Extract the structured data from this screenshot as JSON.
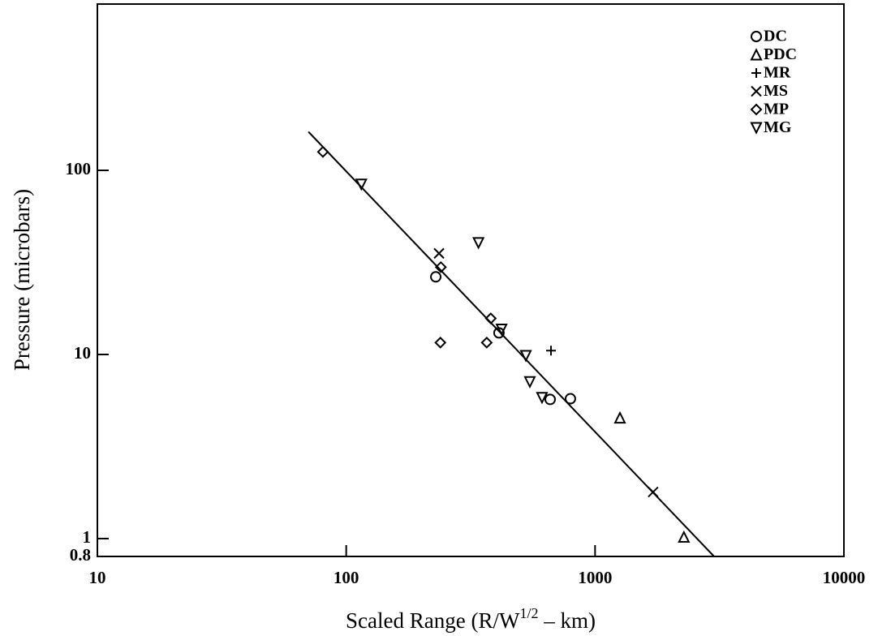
{
  "chart_data": {
    "type": "scatter",
    "ylabel": "Pressure (microbars)",
    "xlabel": {
      "text": "Scaled Range (R/W",
      "sup": "1/2",
      "tail": " – km)"
    },
    "log_x": true,
    "log_y": true,
    "xlim": [
      10,
      10000
    ],
    "ylim": [
      0.8,
      800
    ],
    "xticks": [
      10,
      100,
      1000,
      10000
    ],
    "yticks": [
      0.8,
      1,
      10,
      100
    ],
    "legend": "upper right",
    "color": "#000000",
    "series": [
      {
        "name": "DC",
        "marker": "circle",
        "x": [
          229,
          411,
          660,
          796
        ],
        "values": [
          26.4,
          13.1,
          5.7,
          5.75
        ]
      },
      {
        "name": "PDC",
        "marker": "triangle-up",
        "x": [
          1259,
          2275
        ],
        "values": [
          4.53,
          1.02
        ]
      },
      {
        "name": "MR",
        "marker": "plus",
        "x": [
          665
        ],
        "values": [
          10.5
        ]
      },
      {
        "name": "MS",
        "marker": "x",
        "x": [
          236,
          1711
        ],
        "values": [
          35.4,
          1.79
        ]
      },
      {
        "name": "MP",
        "marker": "diamond",
        "x": [
          80.6,
          240,
          381,
          239,
          367
        ],
        "values": [
          126,
          29.8,
          15.7,
          11.6,
          11.6
        ]
      },
      {
        "name": "MG",
        "marker": "triangle-down",
        "x": [
          115,
          340,
          421,
          527,
          547,
          612
        ],
        "values": [
          84,
          40.4,
          13.7,
          9.85,
          7.1,
          5.83
        ]
      }
    ],
    "fit_line": {
      "x": [
        70.5,
        3008
      ],
      "values": [
        162,
        0.8
      ]
    }
  }
}
